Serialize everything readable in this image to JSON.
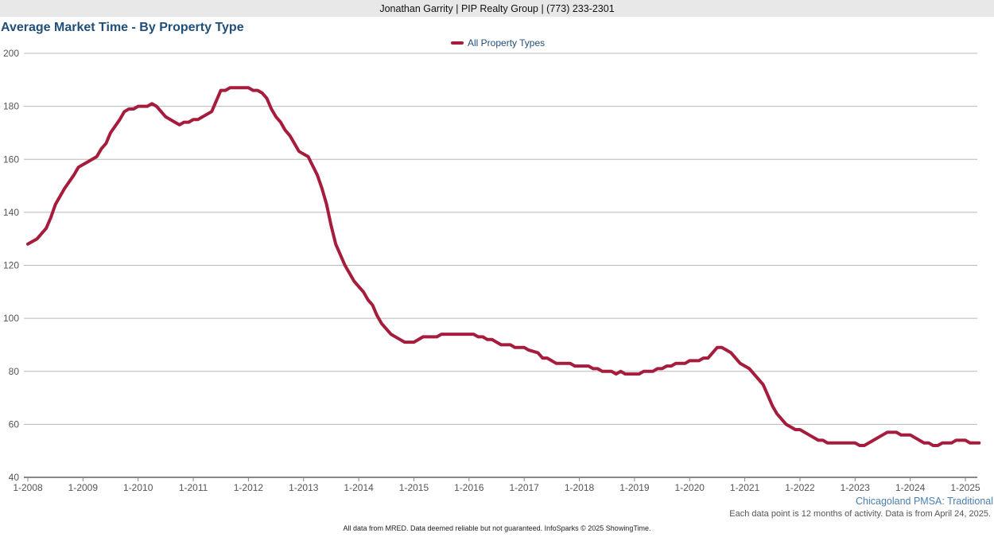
{
  "header": {
    "text": "Jonathan Garrity | PIP Realty Group | (773) 233-2301"
  },
  "title": "Average Market Time - By Property Type",
  "notes": {
    "region": "Chicagoland PMSA: Traditional",
    "activity": "Each data point is 12 months of activity. Data is from April 24, 2025.",
    "footer": "All data from MRED. Data deemed reliable but not guaranteed. InfoSparks © 2025 ShowingTime."
  },
  "colors": {
    "series": "#a51c3c",
    "title": "#1f4e79",
    "grid": "#b8b8b8",
    "header_bg": "#e8e8e8"
  },
  "chart_data": {
    "type": "line",
    "title": "Average Market Time - By Property Type",
    "xlabel": "",
    "ylabel": "",
    "ylim": [
      40,
      200
    ],
    "yticks": [
      40,
      60,
      80,
      100,
      120,
      140,
      160,
      180,
      200
    ],
    "xticks": [
      "1-2008",
      "1-2009",
      "1-2010",
      "1-2011",
      "1-2012",
      "1-2013",
      "1-2014",
      "1-2015",
      "1-2016",
      "1-2017",
      "1-2018",
      "1-2019",
      "1-2020",
      "1-2021",
      "1-2022",
      "1-2023",
      "1-2024",
      "1-2025"
    ],
    "xlim": [
      "1-2008",
      "4-2025"
    ],
    "grid": true,
    "legend_position": "top-center",
    "series": [
      {
        "name": "All Property Types",
        "color": "#a51c3c",
        "points": [
          [
            "1-2008",
            128
          ],
          [
            "3-2008",
            130
          ],
          [
            "5-2008",
            134
          ],
          [
            "6-2008",
            138
          ],
          [
            "7-2008",
            143
          ],
          [
            "9-2008",
            149
          ],
          [
            "11-2008",
            154
          ],
          [
            "12-2008",
            157
          ],
          [
            "2-2009",
            159
          ],
          [
            "4-2009",
            161
          ],
          [
            "5-2009",
            164
          ],
          [
            "6-2009",
            166
          ],
          [
            "7-2009",
            170
          ],
          [
            "9-2009",
            175
          ],
          [
            "10-2009",
            178
          ],
          [
            "11-2009",
            179
          ],
          [
            "12-2009",
            179
          ],
          [
            "1-2010",
            180
          ],
          [
            "3-2010",
            180
          ],
          [
            "4-2010",
            181
          ],
          [
            "5-2010",
            180
          ],
          [
            "7-2010",
            176
          ],
          [
            "9-2010",
            174
          ],
          [
            "10-2010",
            173
          ],
          [
            "11-2010",
            174
          ],
          [
            "12-2010",
            174
          ],
          [
            "1-2011",
            175
          ],
          [
            "2-2011",
            175
          ],
          [
            "3-2011",
            176
          ],
          [
            "5-2011",
            178
          ],
          [
            "7-2011",
            186
          ],
          [
            "8-2011",
            186
          ],
          [
            "9-2011",
            187
          ],
          [
            "12-2011",
            187
          ],
          [
            "1-2012",
            187
          ],
          [
            "2-2012",
            186
          ],
          [
            "3-2012",
            186
          ],
          [
            "4-2012",
            185
          ],
          [
            "5-2012",
            183
          ],
          [
            "6-2012",
            179
          ],
          [
            "7-2012",
            176
          ],
          [
            "8-2012",
            174
          ],
          [
            "9-2012",
            171
          ],
          [
            "10-2012",
            169
          ],
          [
            "12-2012",
            163
          ],
          [
            "2-2013",
            161
          ],
          [
            "4-2013",
            154
          ],
          [
            "5-2013",
            149
          ],
          [
            "6-2013",
            143
          ],
          [
            "7-2013",
            135
          ],
          [
            "8-2013",
            128
          ],
          [
            "10-2013",
            120
          ],
          [
            "12-2013",
            114
          ],
          [
            "2-2014",
            110
          ],
          [
            "3-2014",
            107
          ],
          [
            "4-2014",
            105
          ],
          [
            "5-2014",
            101
          ],
          [
            "6-2014",
            98
          ],
          [
            "8-2014",
            94
          ],
          [
            "10-2014",
            92
          ],
          [
            "11-2014",
            91
          ],
          [
            "1-2015",
            91
          ],
          [
            "2-2015",
            92
          ],
          [
            "3-2015",
            93
          ],
          [
            "6-2015",
            93
          ],
          [
            "7-2015",
            94
          ],
          [
            "1-2016",
            94
          ],
          [
            "2-2016",
            94
          ],
          [
            "3-2016",
            93
          ],
          [
            "4-2016",
            93
          ],
          [
            "5-2016",
            92
          ],
          [
            "6-2016",
            92
          ],
          [
            "7-2016",
            91
          ],
          [
            "8-2016",
            90
          ],
          [
            "10-2016",
            90
          ],
          [
            "11-2016",
            89
          ],
          [
            "1-2017",
            89
          ],
          [
            "2-2017",
            88
          ],
          [
            "4-2017",
            87
          ],
          [
            "5-2017",
            85
          ],
          [
            "6-2017",
            85
          ],
          [
            "8-2017",
            83
          ],
          [
            "11-2017",
            83
          ],
          [
            "12-2017",
            82
          ],
          [
            "3-2018",
            82
          ],
          [
            "4-2018",
            81
          ],
          [
            "5-2018",
            81
          ],
          [
            "6-2018",
            80
          ],
          [
            "8-2018",
            80
          ],
          [
            "9-2018",
            79
          ],
          [
            "10-2018",
            80
          ],
          [
            "11-2018",
            79
          ],
          [
            "1-2019",
            79
          ],
          [
            "2-2019",
            79
          ],
          [
            "3-2019",
            80
          ],
          [
            "5-2019",
            80
          ],
          [
            "6-2019",
            81
          ],
          [
            "7-2019",
            81
          ],
          [
            "8-2019",
            82
          ],
          [
            "9-2019",
            82
          ],
          [
            "10-2019",
            83
          ],
          [
            "12-2019",
            83
          ],
          [
            "1-2020",
            84
          ],
          [
            "3-2020",
            84
          ],
          [
            "4-2020",
            85
          ],
          [
            "5-2020",
            85
          ],
          [
            "6-2020",
            87
          ],
          [
            "7-2020",
            89
          ],
          [
            "8-2020",
            89
          ],
          [
            "10-2020",
            87
          ],
          [
            "11-2020",
            85
          ],
          [
            "12-2020",
            83
          ],
          [
            "2-2021",
            81
          ],
          [
            "3-2021",
            79
          ],
          [
            "5-2021",
            75
          ],
          [
            "6-2021",
            71
          ],
          [
            "7-2021",
            67
          ],
          [
            "8-2021",
            64
          ],
          [
            "10-2021",
            60
          ],
          [
            "12-2021",
            58
          ],
          [
            "1-2022",
            58
          ],
          [
            "3-2022",
            56
          ],
          [
            "5-2022",
            54
          ],
          [
            "6-2022",
            54
          ],
          [
            "7-2022",
            53
          ],
          [
            "12-2022",
            53
          ],
          [
            "1-2023",
            53
          ],
          [
            "2-2023",
            52
          ],
          [
            "3-2023",
            52
          ],
          [
            "5-2023",
            54
          ],
          [
            "7-2023",
            56
          ],
          [
            "8-2023",
            57
          ],
          [
            "10-2023",
            57
          ],
          [
            "11-2023",
            56
          ],
          [
            "1-2024",
            56
          ],
          [
            "3-2024",
            54
          ],
          [
            "4-2024",
            53
          ],
          [
            "5-2024",
            53
          ],
          [
            "6-2024",
            52
          ],
          [
            "7-2024",
            52
          ],
          [
            "8-2024",
            53
          ],
          [
            "10-2024",
            53
          ],
          [
            "11-2024",
            54
          ],
          [
            "1-2025",
            54
          ],
          [
            "2-2025",
            53
          ],
          [
            "4-2025",
            53
          ]
        ]
      }
    ]
  }
}
